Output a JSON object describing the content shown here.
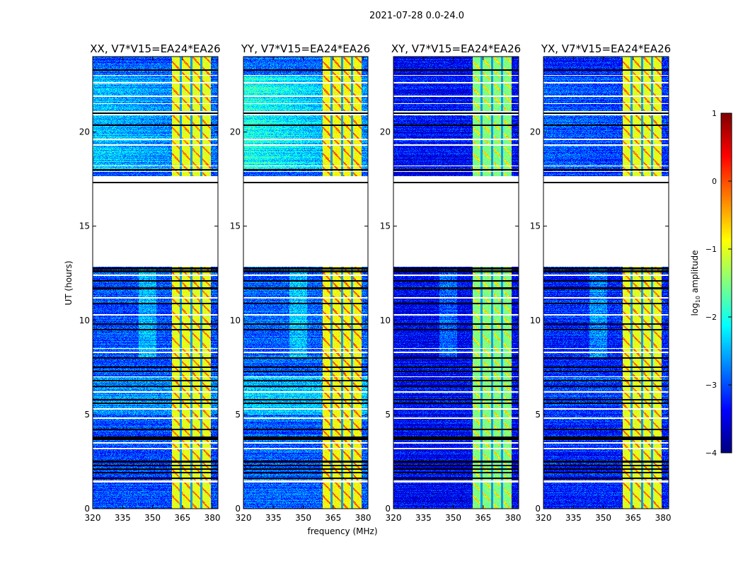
{
  "chart_data": {
    "type": "heatmap",
    "suptitle": "2021-07-28 0.0-24.0",
    "xlabel": "frequency (MHz)",
    "ylabel": "UT (hours)",
    "xlim": [
      320,
      382.8
    ],
    "ylim": [
      0,
      24
    ],
    "xticks": [
      "320",
      "335",
      "350",
      "365",
      "380"
    ],
    "yticks": [
      "0",
      "5",
      "10",
      "15",
      "20"
    ],
    "colorbar": {
      "label": "log10 amplitude",
      "label_main": "log",
      "label_sub": "10",
      "label_rest": " amplitude",
      "range": [
        -4,
        1
      ],
      "ticks": [
        "1",
        "0",
        "−1",
        "−2",
        "−3",
        "−4"
      ],
      "colormap": "jet"
    },
    "panels": [
      {
        "title": "XX, V7*V15=EA24*EA26",
        "background_level": -3.0,
        "late_boost": 0.6,
        "band_level": -1.0
      },
      {
        "title": "YY, V7*V15=EA24*EA26",
        "background_level": -2.9,
        "late_boost": 0.9,
        "band_level": -0.9
      },
      {
        "title": "XY, V7*V15=EA24*EA26",
        "background_level": -3.4,
        "late_boost": 0.1,
        "band_level": -1.5
      },
      {
        "title": "YX, V7*V15=EA24*EA26",
        "background_level": -3.2,
        "late_boost": 0.3,
        "band_level": -1.0
      }
    ],
    "band_mhz": [
      359.8,
      379.2
    ],
    "band_separators_mhz": [
      364.2,
      369.6,
      374.6
    ],
    "flagged_hour_ranges": [
      [
        12.85,
        17.65
      ],
      [
        20.9,
        21.1
      ],
      [
        1.38,
        1.5
      ]
    ],
    "black_line_hours": [
      23.3,
      21.0,
      20.35,
      18.0,
      17.3,
      12.75,
      12.6,
      12.1,
      11.7,
      10.9,
      9.8,
      9.5,
      8.0,
      7.5,
      7.3,
      6.8,
      6.5,
      5.8,
      5.6,
      4.2,
      3.8,
      3.7,
      2.5,
      2.3,
      2.1,
      1.9,
      1.6
    ],
    "white_line_hours": [
      23.0,
      22.6,
      21.9,
      21.5,
      19.6,
      19.3,
      18.2,
      17.9,
      12.4,
      11.2,
      10.3,
      8.5,
      8.3,
      7.0,
      6.2,
      5.3,
      4.8,
      3.5,
      3.2
    ]
  }
}
